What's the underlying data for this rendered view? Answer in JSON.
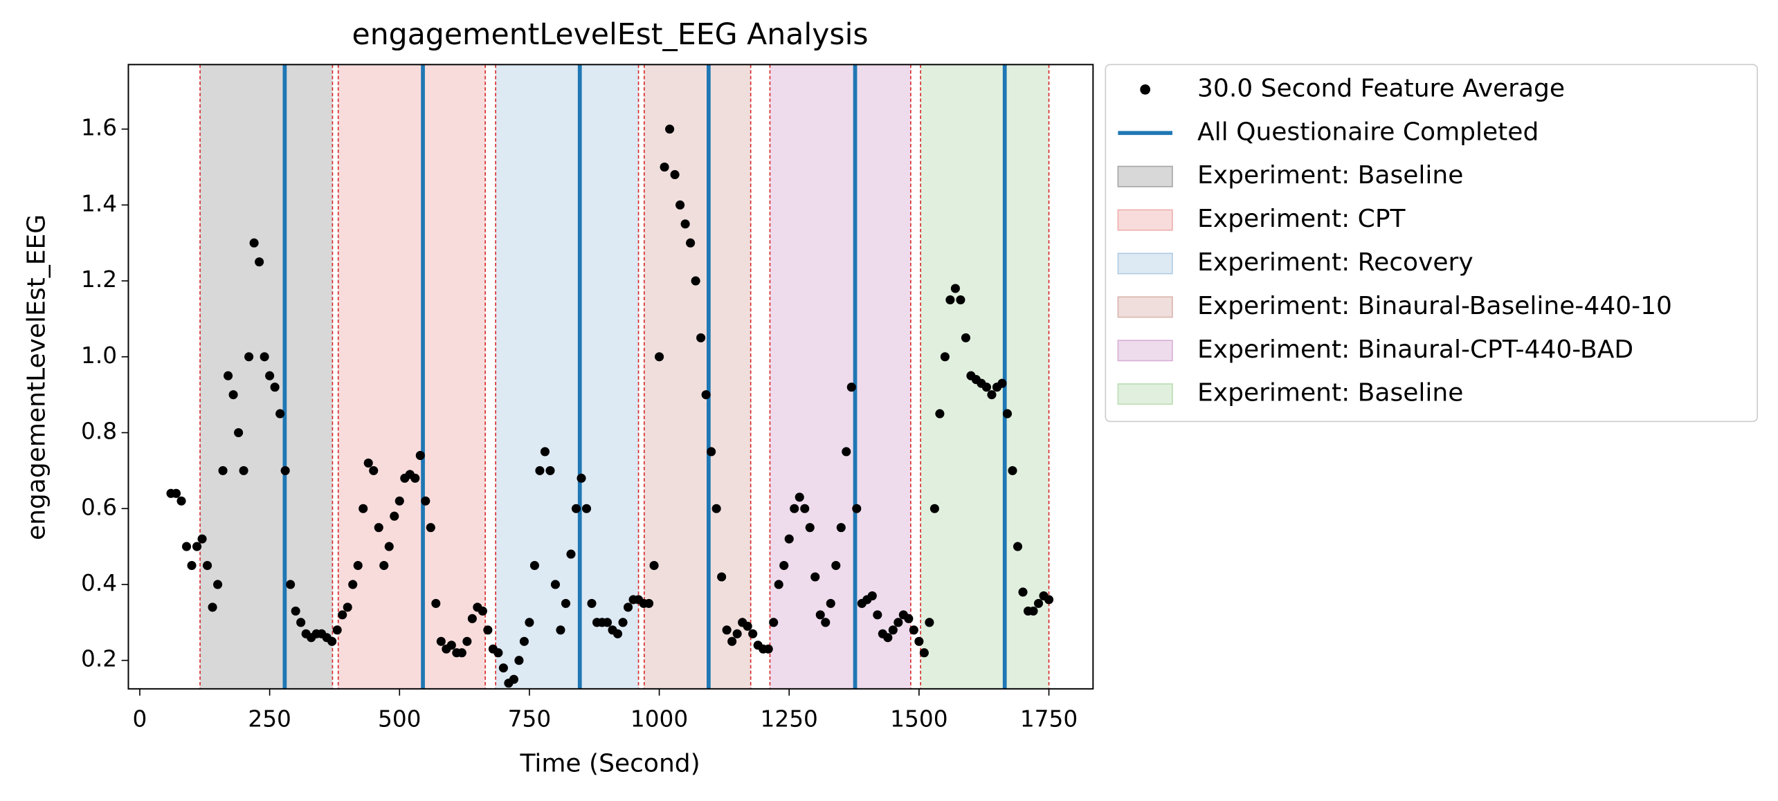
{
  "chart_data": {
    "type": "scatter",
    "title": "engagementLevelEst_EEG Analysis",
    "xlabel": "Time (Second)",
    "ylabel": "engagementLevelEst_EEG",
    "xlim": [
      -22,
      1835
    ],
    "ylim": [
      0.125,
      1.77
    ],
    "xticks": [
      0,
      250,
      500,
      750,
      1000,
      1250,
      1500,
      1750
    ],
    "yticks": [
      0.2,
      0.4,
      0.6,
      0.8,
      {
        "value": 1,
        "label": "1.0"
      },
      1.2,
      1.4,
      1.6
    ],
    "x": [
      60,
      70,
      80,
      90,
      100,
      110,
      120,
      130,
      140,
      150,
      160,
      170,
      180,
      190,
      200,
      210,
      220,
      230,
      240,
      250,
      260,
      270,
      280,
      290,
      300,
      310,
      320,
      330,
      340,
      350,
      360,
      370,
      380,
      390,
      400,
      410,
      420,
      430,
      440,
      450,
      460,
      470,
      480,
      490,
      500,
      510,
      520,
      530,
      540,
      550,
      560,
      570,
      580,
      590,
      600,
      610,
      620,
      630,
      640,
      650,
      660,
      670,
      680,
      690,
      700,
      710,
      720,
      730,
      740,
      750,
      760,
      770,
      780,
      790,
      800,
      810,
      820,
      830,
      840,
      850,
      860,
      870,
      880,
      890,
      900,
      910,
      920,
      930,
      940,
      950,
      960,
      970,
      980,
      990,
      1000,
      1010,
      1020,
      1030,
      1040,
      1050,
      1060,
      1070,
      1080,
      1090,
      1100,
      1110,
      1120,
      1130,
      1140,
      1150,
      1160,
      1170,
      1180,
      1190,
      1200,
      1210,
      1220,
      1230,
      1240,
      1250,
      1260,
      1270,
      1280,
      1290,
      1300,
      1310,
      1320,
      1330,
      1340,
      1350,
      1360,
      1370,
      1380,
      1390,
      1400,
      1410,
      1420,
      1430,
      1440,
      1450,
      1460,
      1470,
      1480,
      1490,
      1500,
      1510,
      1520,
      1530,
      1540,
      1550,
      1560,
      1570,
      1580,
      1590,
      1600,
      1610,
      1620,
      1630,
      1640,
      1650,
      1660,
      1670,
      1680,
      1690,
      1700,
      1710,
      1720,
      1730,
      1740,
      1750
    ],
    "series": [
      {
        "name": "30.0 Second Feature Average",
        "color": "#000000",
        "values": [
          0.64,
          0.64,
          0.62,
          0.5,
          0.45,
          0.5,
          0.52,
          0.45,
          0.34,
          0.4,
          0.7,
          0.95,
          0.9,
          0.8,
          0.7,
          1.0,
          1.3,
          1.25,
          1.0,
          0.95,
          0.92,
          0.85,
          0.7,
          0.4,
          0.33,
          0.3,
          0.27,
          0.26,
          0.27,
          0.27,
          0.26,
          0.25,
          0.28,
          0.32,
          0.34,
          0.4,
          0.45,
          0.6,
          0.72,
          0.7,
          0.55,
          0.45,
          0.5,
          0.58,
          0.62,
          0.68,
          0.69,
          0.68,
          0.74,
          0.62,
          0.55,
          0.35,
          0.25,
          0.23,
          0.24,
          0.22,
          0.22,
          0.25,
          0.31,
          0.34,
          0.33,
          0.28,
          0.23,
          0.22,
          0.18,
          0.14,
          0.15,
          0.2,
          0.25,
          0.3,
          0.45,
          0.7,
          0.75,
          0.7,
          0.4,
          0.28,
          0.35,
          0.48,
          0.6,
          0.68,
          0.6,
          0.35,
          0.3,
          0.3,
          0.3,
          0.28,
          0.27,
          0.3,
          0.34,
          0.36,
          0.36,
          0.35,
          0.35,
          0.45,
          1.0,
          1.5,
          1.6,
          1.48,
          1.4,
          1.35,
          1.3,
          1.2,
          1.05,
          0.9,
          0.75,
          0.6,
          0.42,
          0.28,
          0.25,
          0.27,
          0.3,
          0.29,
          0.27,
          0.24,
          0.23,
          0.23,
          0.3,
          0.4,
          0.45,
          0.52,
          0.6,
          0.63,
          0.6,
          0.55,
          0.42,
          0.32,
          0.3,
          0.35,
          0.45,
          0.55,
          0.75,
          0.92,
          0.6,
          0.35,
          0.36,
          0.37,
          0.32,
          0.27,
          0.26,
          0.28,
          0.3,
          0.32,
          0.31,
          0.28,
          0.25,
          0.22,
          0.3,
          0.6,
          0.85,
          1.0,
          1.15,
          1.18,
          1.15,
          1.05,
          0.95,
          0.94,
          0.93,
          0.92,
          0.9,
          0.92,
          0.93,
          0.85,
          0.7,
          0.5,
          0.38,
          0.33,
          0.33,
          0.35,
          0.37,
          0.36
        ]
      }
    ],
    "vlines": {
      "name": "All Questionaire Completed",
      "color": "#1f77b4",
      "x": [
        279,
        545,
        847,
        1095,
        1377,
        1665
      ]
    },
    "spans": [
      {
        "name": "Experiment: Baseline",
        "color": "#636363",
        "start": 116,
        "end": 371
      },
      {
        "name": "Experiment: CPT",
        "color": "#e37373",
        "start": 382,
        "end": 665
      },
      {
        "name": "Experiment: Recovery",
        "color": "#77a7cf",
        "start": 685,
        "end": 960
      },
      {
        "name": "Experiment: Binaural-Baseline-440-10",
        "color": "#bf7b73",
        "start": 971,
        "end": 1176
      },
      {
        "name": "Experiment: Binaural-CPT-440-BAD",
        "color": "#bb73b7",
        "start": 1213,
        "end": 1484
      },
      {
        "name": "Experiment: Baseline",
        "color": "#87c37b",
        "start": 1503,
        "end": 1750
      }
    ],
    "legend": "outside upper right"
  }
}
